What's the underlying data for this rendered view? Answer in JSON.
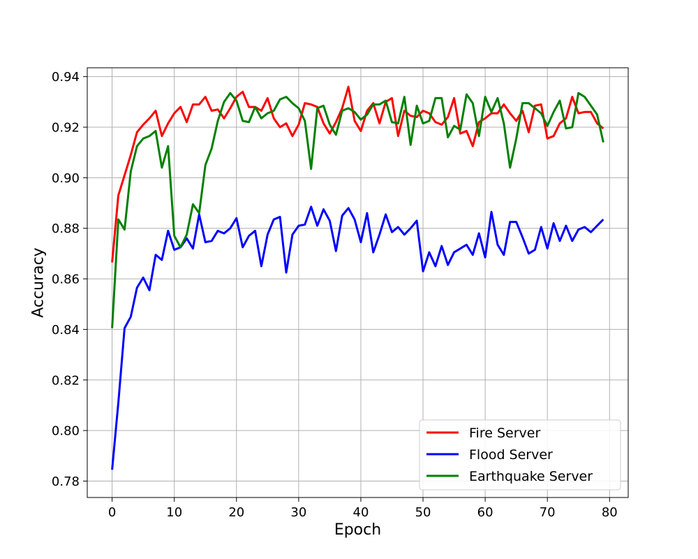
{
  "chart_data": {
    "type": "line",
    "xlabel": "Epoch",
    "ylabel": "Accuracy",
    "xlim": [
      -4,
      83
    ],
    "ylim": [
      0.7735,
      0.9435
    ],
    "xticks": [
      0,
      10,
      20,
      30,
      40,
      50,
      60,
      70,
      80
    ],
    "yticks": [
      0.78,
      0.8,
      0.82,
      0.84,
      0.86,
      0.88,
      0.9,
      0.92,
      0.94
    ],
    "xtick_labels": [
      "0",
      "10",
      "20",
      "30",
      "40",
      "50",
      "60",
      "70",
      "80"
    ],
    "ytick_labels": [
      "0.78",
      "0.80",
      "0.82",
      "0.84",
      "0.86",
      "0.88",
      "0.90",
      "0.92",
      "0.94"
    ],
    "grid": true,
    "legend_position": "bottom-right",
    "x": [
      0,
      1,
      2,
      3,
      4,
      5,
      6,
      7,
      8,
      9,
      10,
      11,
      12,
      13,
      14,
      15,
      16,
      17,
      18,
      19,
      20,
      21,
      22,
      23,
      24,
      25,
      26,
      27,
      28,
      29,
      30,
      31,
      32,
      33,
      34,
      35,
      36,
      37,
      38,
      39,
      40,
      41,
      42,
      43,
      44,
      45,
      46,
      47,
      48,
      49,
      50,
      51,
      52,
      53,
      54,
      55,
      56,
      57,
      58,
      59,
      60,
      61,
      62,
      63,
      64,
      65,
      66,
      67,
      68,
      69,
      70,
      71,
      72,
      73,
      74,
      75,
      76,
      77,
      78,
      79
    ],
    "series": [
      {
        "name": "Fire Server",
        "color": "#ff0000",
        "values": [
          0.8665,
          0.893,
          0.901,
          0.909,
          0.918,
          0.921,
          0.9235,
          0.9265,
          0.9165,
          0.9215,
          0.9255,
          0.928,
          0.922,
          0.929,
          0.929,
          0.932,
          0.9265,
          0.927,
          0.9235,
          0.9275,
          0.932,
          0.934,
          0.928,
          0.928,
          0.9265,
          0.9315,
          0.9235,
          0.92,
          0.9215,
          0.9165,
          0.921,
          0.9295,
          0.929,
          0.928,
          0.9215,
          0.9175,
          0.922,
          0.9275,
          0.936,
          0.9225,
          0.9185,
          0.9265,
          0.9295,
          0.9215,
          0.93,
          0.9315,
          0.9165,
          0.9265,
          0.9245,
          0.924,
          0.9265,
          0.9255,
          0.922,
          0.921,
          0.924,
          0.9315,
          0.9175,
          0.9185,
          0.9125,
          0.922,
          0.9235,
          0.9255,
          0.9255,
          0.929,
          0.9255,
          0.9225,
          0.9265,
          0.918,
          0.9285,
          0.929,
          0.9155,
          0.9165,
          0.9215,
          0.9235,
          0.932,
          0.9255,
          0.926,
          0.926,
          0.9215,
          0.9195
        ]
      },
      {
        "name": "Flood Server",
        "color": "#0000ff",
        "values": [
          0.7845,
          0.811,
          0.8405,
          0.845,
          0.8565,
          0.8605,
          0.8555,
          0.8695,
          0.8675,
          0.879,
          0.8715,
          0.8725,
          0.876,
          0.872,
          0.8855,
          0.8745,
          0.875,
          0.879,
          0.878,
          0.88,
          0.884,
          0.8725,
          0.877,
          0.879,
          0.865,
          0.8775,
          0.8835,
          0.8845,
          0.8625,
          0.8775,
          0.881,
          0.8815,
          0.8885,
          0.881,
          0.8875,
          0.883,
          0.871,
          0.885,
          0.888,
          0.8835,
          0.8745,
          0.886,
          0.8705,
          0.8775,
          0.8855,
          0.8785,
          0.8805,
          0.8775,
          0.88,
          0.883,
          0.863,
          0.8705,
          0.865,
          0.873,
          0.8655,
          0.8705,
          0.872,
          0.8735,
          0.8695,
          0.878,
          0.8685,
          0.8865,
          0.8735,
          0.8695,
          0.8825,
          0.8825,
          0.8765,
          0.87,
          0.8715,
          0.8805,
          0.872,
          0.882,
          0.875,
          0.881,
          0.875,
          0.8795,
          0.8805,
          0.8785,
          0.881,
          0.8835
        ]
      },
      {
        "name": "Earthquake Server",
        "color": "#008000",
        "values": [
          0.8405,
          0.8835,
          0.8795,
          0.9025,
          0.9125,
          0.9155,
          0.9165,
          0.9185,
          0.904,
          0.9125,
          0.877,
          0.8725,
          0.8775,
          0.8895,
          0.886,
          0.905,
          0.9115,
          0.9225,
          0.93,
          0.9335,
          0.9305,
          0.9225,
          0.922,
          0.928,
          0.9235,
          0.9255,
          0.9265,
          0.931,
          0.932,
          0.9295,
          0.9275,
          0.9225,
          0.9035,
          0.9275,
          0.9285,
          0.921,
          0.917,
          0.9265,
          0.9275,
          0.926,
          0.923,
          0.925,
          0.929,
          0.929,
          0.9305,
          0.922,
          0.9215,
          0.932,
          0.913,
          0.9285,
          0.9215,
          0.9225,
          0.9315,
          0.9315,
          0.916,
          0.9205,
          0.919,
          0.933,
          0.9295,
          0.9165,
          0.932,
          0.926,
          0.9315,
          0.9215,
          0.904,
          0.9155,
          0.9295,
          0.9295,
          0.9275,
          0.9255,
          0.9205,
          0.926,
          0.9305,
          0.9195,
          0.92,
          0.9335,
          0.932,
          0.9285,
          0.925,
          0.914
        ]
      }
    ]
  }
}
